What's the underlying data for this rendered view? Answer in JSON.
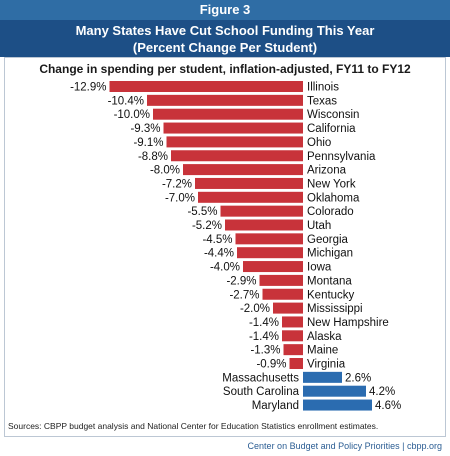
{
  "header": {
    "figure_label": "Figure 3",
    "title_line1": "Many States Have Cut School Funding This Year",
    "title_line2": "(Percent Change Per Student)"
  },
  "footer": {
    "source": "Sources: CBPP budget analysis and National Center for Education Statistics enrollment estimates.",
    "credit": "Center on Budget and Policy Priorities | cbpp.org"
  },
  "colors": {
    "negative": "#c8333a",
    "positive": "#2b6cb0",
    "header": "#1d4f86",
    "figure_label": "#2f6da5"
  },
  "chart_data": {
    "type": "bar",
    "orientation": "horizontal",
    "title": "Change in spending per student, inflation-adjusted, FY11 to FY12",
    "categories": [
      "Illinois",
      "Texas",
      "Wisconsin",
      "California",
      "Ohio",
      "Pennsylvania",
      "Arizona",
      "New York",
      "Oklahoma",
      "Colorado",
      "Utah",
      "Georgia",
      "Michigan",
      "Iowa",
      "Montana",
      "Kentucky",
      "Mississippi",
      "New Hampshire",
      "Alaska",
      "Maine",
      "Virginia",
      "Massachusetts",
      "South Carolina",
      "Maryland"
    ],
    "values": [
      -12.9,
      -10.4,
      -10.0,
      -9.3,
      -9.1,
      -8.8,
      -8.0,
      -7.2,
      -7.0,
      -5.5,
      -5.2,
      -4.5,
      -4.4,
      -4.0,
      -2.9,
      -2.7,
      -2.0,
      -1.4,
      -1.4,
      -1.3,
      -0.9,
      2.6,
      4.2,
      4.6
    ],
    "value_labels": [
      "-12.9%",
      "-10.4%",
      "-10.0%",
      "-9.3%",
      "-9.1%",
      "-8.8%",
      "-8.0%",
      "-7.2%",
      "-7.0%",
      "-5.5%",
      "-5.2%",
      "-4.5%",
      "-4.4%",
      "-4.0%",
      "-2.9%",
      "-2.7%",
      "-2.0%",
      "-1.4%",
      "-1.4%",
      "-1.3%",
      "-0.9%",
      "2.6%",
      "4.2%",
      "4.6%"
    ],
    "unit": "%",
    "grid": false,
    "legend": "none"
  }
}
